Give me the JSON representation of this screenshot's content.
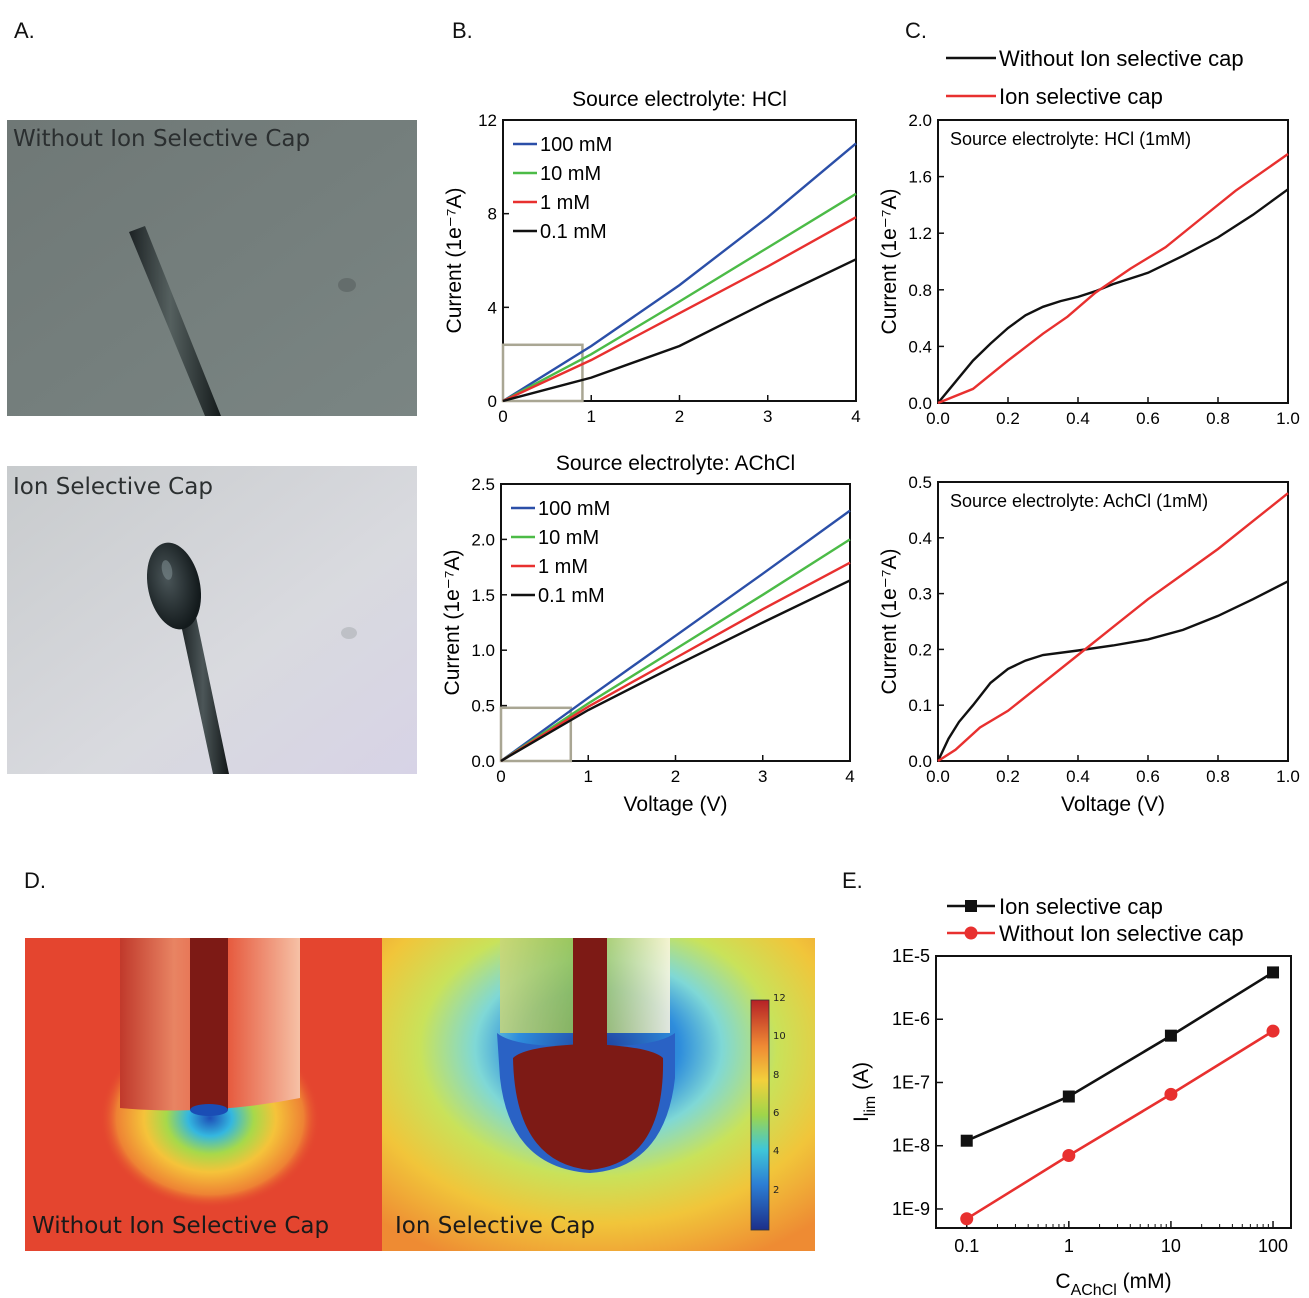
{
  "panel_labels": {
    "a": "A.",
    "b": "B.",
    "c": "C.",
    "d": "D.",
    "e": "E."
  },
  "photos": {
    "without_cap_label": "Without Ion Selective Cap",
    "with_cap_label": "Ion Selective Cap"
  },
  "simulation": {
    "left_label": "Without Ion Selective Cap",
    "right_label": "Ion Selective Cap",
    "colorbar_ticks": [
      "12",
      "10",
      "8",
      "6",
      "4",
      "2"
    ],
    "colorbar_range": [
      0,
      12
    ]
  },
  "chart_data": [
    {
      "id": "B-top",
      "type": "line",
      "title": "Source electrolyte: HCl",
      "xlabel": "",
      "ylabel": "Current (1e⁻⁷A)",
      "xlim": [
        0,
        4
      ],
      "ylim": [
        0,
        12
      ],
      "xticks": [
        "0",
        "1",
        "2",
        "3",
        "4"
      ],
      "yticks": [
        "0",
        "4",
        "8",
        "12"
      ],
      "legend": "top-left",
      "series": [
        {
          "name": "100 mM",
          "color": "#2b4fa8",
          "points": [
            [
              0,
              0
            ],
            [
              1,
              2.35
            ],
            [
              2,
              4.95
            ],
            [
              3,
              7.85
            ],
            [
              4,
              11.0
            ]
          ]
        },
        {
          "name": "10   mM",
          "color": "#4cbb47",
          "points": [
            [
              0,
              0
            ],
            [
              1,
              2.0
            ],
            [
              2,
              4.25
            ],
            [
              3,
              6.55
            ],
            [
              4,
              8.85
            ]
          ]
        },
        {
          "name": "1      mM",
          "color": "#e8302f",
          "points": [
            [
              0,
              0
            ],
            [
              1,
              1.75
            ],
            [
              2,
              3.75
            ],
            [
              3,
              5.75
            ],
            [
              4,
              7.85
            ]
          ]
        },
        {
          "name": "0.1   mM",
          "color": "#111111",
          "points": [
            [
              0,
              0
            ],
            [
              1,
              1.0
            ],
            [
              2,
              2.35
            ],
            [
              3,
              4.25
            ],
            [
              4,
              6.05
            ]
          ]
        }
      ],
      "zoom_box": {
        "x": [
          0,
          0.9
        ],
        "y": [
          0,
          2.4
        ]
      }
    },
    {
      "id": "B-bottom",
      "type": "line",
      "title": "Source electrolyte: AChCl",
      "xlabel": "Voltage (V)",
      "ylabel": "Current (1e⁻⁷A)",
      "xlim": [
        0,
        4
      ],
      "ylim": [
        0,
        2.5
      ],
      "xticks": [
        "0",
        "1",
        "2",
        "3",
        "4"
      ],
      "yticks": [
        "0.0",
        "0.5",
        "1.0",
        "1.5",
        "2.0",
        "2.5"
      ],
      "legend": "top-left",
      "series": [
        {
          "name": "100 mM",
          "color": "#2b4fa8",
          "points": [
            [
              0,
              0
            ],
            [
              1,
              0.57
            ],
            [
              2,
              1.13
            ],
            [
              3,
              1.69
            ],
            [
              4,
              2.26
            ]
          ]
        },
        {
          "name": "10   mM",
          "color": "#4cbb47",
          "points": [
            [
              0,
              0
            ],
            [
              1,
              0.52
            ],
            [
              2,
              1.01
            ],
            [
              3,
              1.5
            ],
            [
              4,
              2.0
            ]
          ]
        },
        {
          "name": "1      mM",
          "color": "#e8302f",
          "points": [
            [
              0,
              0
            ],
            [
              1,
              0.49
            ],
            [
              2,
              0.93
            ],
            [
              3,
              1.37
            ],
            [
              4,
              1.79
            ]
          ]
        },
        {
          "name": "0.1   mM",
          "color": "#111111",
          "points": [
            [
              0,
              0
            ],
            [
              1,
              0.46
            ],
            [
              2,
              0.86
            ],
            [
              3,
              1.25
            ],
            [
              4,
              1.63
            ]
          ]
        }
      ],
      "zoom_box": {
        "x": [
          0,
          0.8
        ],
        "y": [
          0,
          0.48
        ]
      }
    },
    {
      "id": "C-top",
      "type": "line",
      "title": "Source electrolyte: HCl  (1mM)",
      "xlabel": "",
      "ylabel": "Current (1e⁻⁷A)",
      "xlim": [
        0,
        1
      ],
      "ylim": [
        0,
        2.0
      ],
      "xticks": [
        "0.0",
        "0.2",
        "0.4",
        "0.6",
        "0.8",
        "1.0"
      ],
      "yticks": [
        "0.0",
        "0.4",
        "0.8",
        "1.2",
        "1.6",
        "2.0"
      ],
      "series": [
        {
          "name": "Without Ion selective  cap",
          "color": "#111111",
          "points": [
            [
              0,
              0
            ],
            [
              0.05,
              0.15
            ],
            [
              0.1,
              0.3
            ],
            [
              0.15,
              0.42
            ],
            [
              0.2,
              0.53
            ],
            [
              0.25,
              0.62
            ],
            [
              0.3,
              0.68
            ],
            [
              0.35,
              0.72
            ],
            [
              0.4,
              0.75
            ],
            [
              0.45,
              0.79
            ],
            [
              0.5,
              0.84
            ],
            [
              0.6,
              0.92
            ],
            [
              0.7,
              1.04
            ],
            [
              0.8,
              1.17
            ],
            [
              0.9,
              1.33
            ],
            [
              1.0,
              1.51
            ]
          ]
        },
        {
          "name": "Ion selective cap",
          "color": "#e8302f",
          "points": [
            [
              0,
              0
            ],
            [
              0.1,
              0.1
            ],
            [
              0.2,
              0.3
            ],
            [
              0.3,
              0.49
            ],
            [
              0.37,
              0.61
            ],
            [
              0.45,
              0.78
            ],
            [
              0.55,
              0.95
            ],
            [
              0.65,
              1.1
            ],
            [
              0.75,
              1.3
            ],
            [
              0.85,
              1.5
            ],
            [
              1.0,
              1.76
            ]
          ]
        }
      ]
    },
    {
      "id": "C-bottom",
      "type": "line",
      "title": "Source electrolyte: AchCl  (1mM)",
      "xlabel": "Voltage (V)",
      "ylabel": "Current (1e⁻⁷A)",
      "xlim": [
        0,
        1
      ],
      "ylim": [
        0,
        0.5
      ],
      "xticks": [
        "0.0",
        "0.2",
        "0.4",
        "0.6",
        "0.8",
        "1.0"
      ],
      "yticks": [
        "0.0",
        "0.1",
        "0.2",
        "0.3",
        "0.4",
        "0.5"
      ],
      "series": [
        {
          "name": "Without Ion selective  cap",
          "color": "#111111",
          "points": [
            [
              0,
              0
            ],
            [
              0.03,
              0.04
            ],
            [
              0.06,
              0.07
            ],
            [
              0.1,
              0.1
            ],
            [
              0.15,
              0.14
            ],
            [
              0.2,
              0.165
            ],
            [
              0.25,
              0.18
            ],
            [
              0.3,
              0.19
            ],
            [
              0.4,
              0.198
            ],
            [
              0.5,
              0.207
            ],
            [
              0.6,
              0.218
            ],
            [
              0.7,
              0.235
            ],
            [
              0.8,
              0.26
            ],
            [
              0.9,
              0.29
            ],
            [
              1.0,
              0.322
            ]
          ]
        },
        {
          "name": "Ion selective cap",
          "color": "#e8302f",
          "points": [
            [
              0,
              0
            ],
            [
              0.05,
              0.02
            ],
            [
              0.12,
              0.06
            ],
            [
              0.2,
              0.09
            ],
            [
              0.3,
              0.14
            ],
            [
              0.4,
              0.19
            ],
            [
              0.5,
              0.24
            ],
            [
              0.6,
              0.29
            ],
            [
              0.7,
              0.335
            ],
            [
              0.8,
              0.38
            ],
            [
              0.9,
              0.43
            ],
            [
              1.0,
              0.48
            ]
          ]
        }
      ]
    },
    {
      "id": "E",
      "type": "line",
      "title": "",
      "xlabel": "C",
      "xlabel_sub": "AChCl",
      "xlabel_unit": "(mM)",
      "ylabel": "I",
      "ylabel_sub": "lim",
      "ylabel_unit": "(A)",
      "xscale": "log",
      "yscale": "log",
      "xlim": [
        0.05,
        150
      ],
      "ylim": [
        5e-10,
        1e-05
      ],
      "xticks": [
        "0.1",
        "1",
        "10",
        "100"
      ],
      "yticks": [
        "1E-5",
        "1E-6",
        "1E-7",
        "1E-8",
        "1E-9"
      ],
      "legend": "top",
      "series": [
        {
          "name": "Ion selective cap",
          "color": "#111111",
          "marker": "square",
          "x": [
            0.1,
            1,
            10,
            100
          ],
          "y": [
            1.2e-08,
            6e-08,
            5.5e-07,
            5.5e-06
          ]
        },
        {
          "name": "Without Ion selective  cap",
          "color": "#e8302f",
          "marker": "circle",
          "x": [
            0.1,
            1,
            10,
            100
          ],
          "y": [
            7e-10,
            7e-09,
            6.5e-08,
            6.5e-07
          ]
        }
      ]
    }
  ]
}
